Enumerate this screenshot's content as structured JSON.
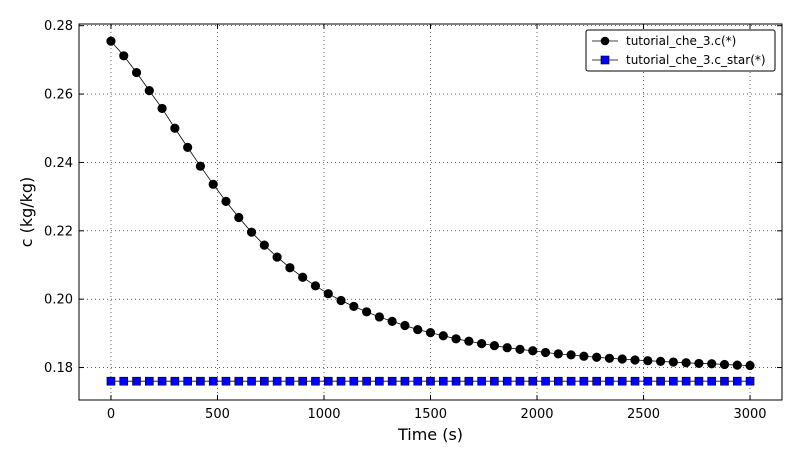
{
  "chart_data": {
    "type": "line",
    "title": "",
    "xlabel": "Time (s)",
    "ylabel": "c (kg/kg)",
    "xlim": [
      -150,
      3150
    ],
    "ylim": [
      0.1705,
      0.2805
    ],
    "xticks": [
      0,
      500,
      1000,
      1500,
      2000,
      2500,
      3000
    ],
    "xtick_labels": [
      "0",
      "500",
      "1000",
      "1500",
      "2000",
      "2500",
      "3000"
    ],
    "yticks": [
      0.18,
      0.2,
      0.22,
      0.24,
      0.26,
      0.28
    ],
    "ytick_labels": [
      "0.18",
      "0.20",
      "0.22",
      "0.24",
      "0.26",
      "0.28"
    ],
    "grid": true,
    "legend_position": "top-right",
    "x": [
      0,
      60,
      120,
      180,
      240,
      300,
      360,
      420,
      480,
      540,
      600,
      660,
      720,
      780,
      840,
      900,
      960,
      1020,
      1080,
      1140,
      1200,
      1260,
      1320,
      1380,
      1440,
      1500,
      1560,
      1620,
      1680,
      1740,
      1800,
      1860,
      1920,
      1980,
      2040,
      2100,
      2160,
      2220,
      2280,
      2340,
      2400,
      2460,
      2520,
      2580,
      2640,
      2700,
      2760,
      2820,
      2880,
      2940,
      3000
    ],
    "series": [
      {
        "name": "tutorial_che_3.c(*)",
        "color": "#000000",
        "marker": "circle",
        "values": [
          0.2755,
          0.2712,
          0.2663,
          0.261,
          0.2558,
          0.25,
          0.2444,
          0.2389,
          0.2336,
          0.2286,
          0.2239,
          0.2196,
          0.2158,
          0.2123,
          0.2092,
          0.2064,
          0.2039,
          0.2016,
          0.1996,
          0.1979,
          0.1963,
          0.1948,
          0.1935,
          0.1923,
          0.1911,
          0.1902,
          0.1893,
          0.1884,
          0.1877,
          0.187,
          0.1864,
          0.1858,
          0.1853,
          0.1849,
          0.1844,
          0.184,
          0.1837,
          0.1833,
          0.183,
          0.1827,
          0.1825,
          0.1822,
          0.182,
          0.1818,
          0.1816,
          0.1814,
          0.1812,
          0.1811,
          0.1809,
          0.1807,
          0.1806
        ]
      },
      {
        "name": "tutorial_che_3.c_star(*)",
        "color": "#0000ff",
        "marker": "square",
        "values": [
          0.176,
          0.176,
          0.176,
          0.176,
          0.176,
          0.176,
          0.176,
          0.176,
          0.176,
          0.176,
          0.176,
          0.176,
          0.176,
          0.176,
          0.176,
          0.176,
          0.176,
          0.176,
          0.176,
          0.176,
          0.176,
          0.176,
          0.176,
          0.176,
          0.176,
          0.176,
          0.176,
          0.176,
          0.176,
          0.176,
          0.176,
          0.176,
          0.176,
          0.176,
          0.176,
          0.176,
          0.176,
          0.176,
          0.176,
          0.176,
          0.176,
          0.176,
          0.176,
          0.176,
          0.176,
          0.176,
          0.176,
          0.176,
          0.176,
          0.176,
          0.176
        ]
      }
    ]
  }
}
